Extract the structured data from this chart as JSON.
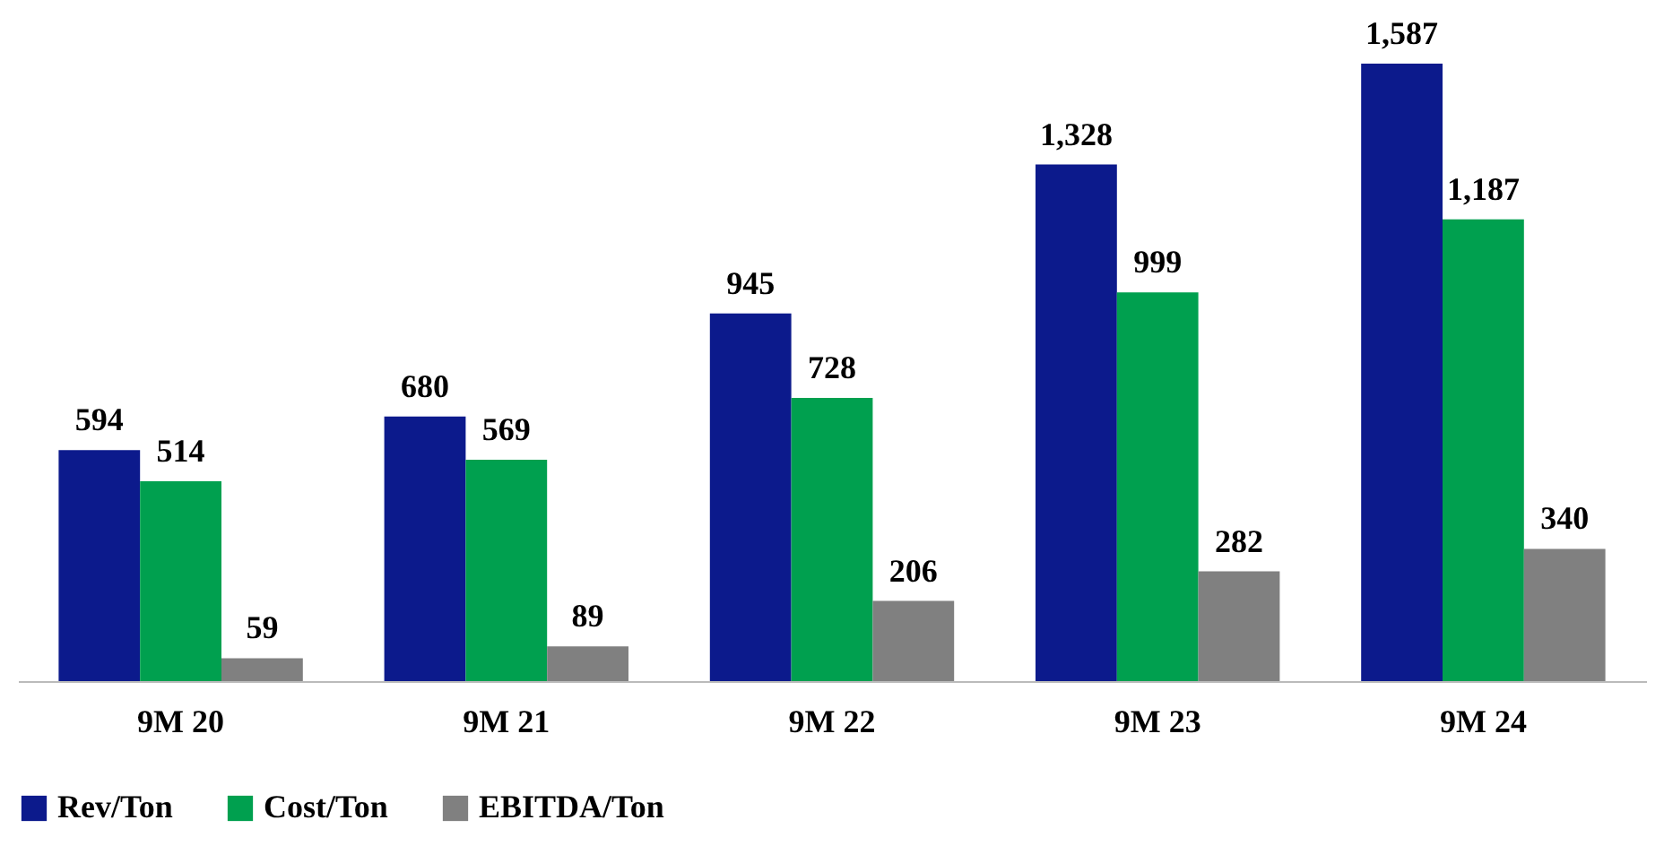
{
  "chart_data": {
    "type": "bar",
    "categories": [
      "9M 20",
      "9M 21",
      "9M 22",
      "9M 23",
      "9M 24"
    ],
    "series": [
      {
        "name": "Rev/Ton",
        "color": "#0c1a8c",
        "values": [
          594,
          680,
          945,
          1328,
          1587
        ],
        "value_labels": [
          "594",
          "680",
          "945",
          "1,328",
          "1,587"
        ]
      },
      {
        "name": "Cost/Ton",
        "color": "#00a04f",
        "values": [
          514,
          569,
          728,
          999,
          1187
        ],
        "value_labels": [
          "514",
          "569",
          "728",
          "999",
          "1,187"
        ]
      },
      {
        "name": "EBITDA/Ton",
        "color": "#808080",
        "values": [
          59,
          89,
          206,
          282,
          340
        ],
        "value_labels": [
          "59",
          "89",
          "206",
          "282",
          "340"
        ]
      }
    ],
    "legend": "bottom",
    "grid": false
  }
}
